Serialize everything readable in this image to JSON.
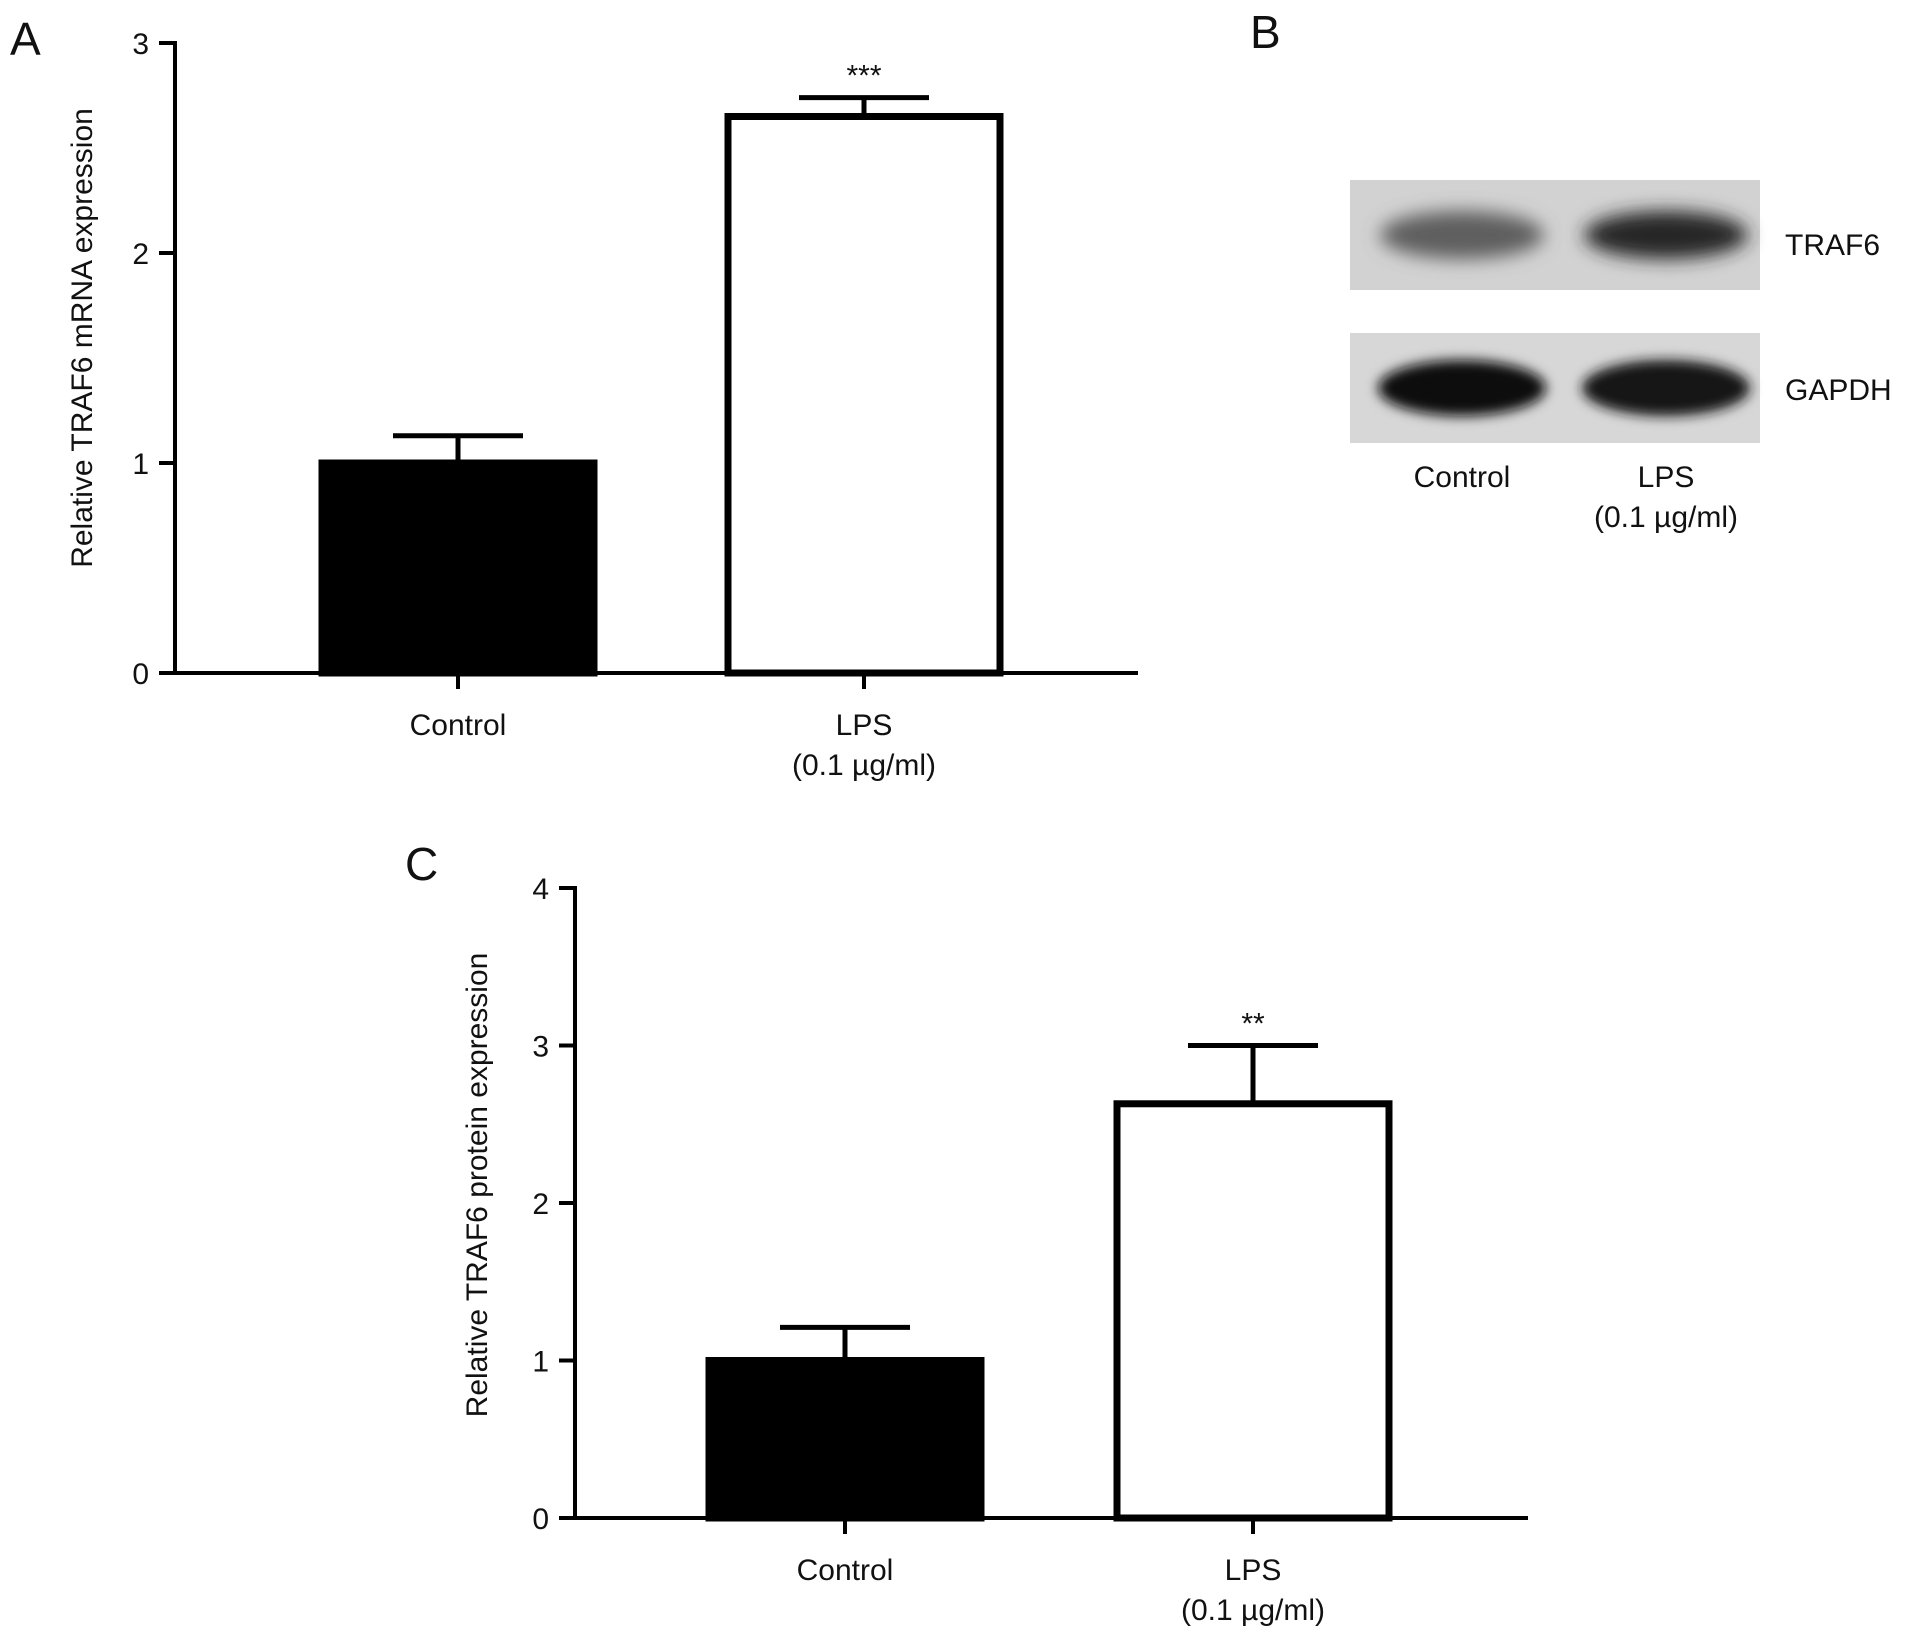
{
  "panels": {
    "A": "A",
    "B": "B",
    "C": "C"
  },
  "chart_data": [
    {
      "panel": "A",
      "type": "bar",
      "ylabel": "Relative TRAF6 mRNA expression",
      "xlabel": "",
      "ylim": [
        0,
        3
      ],
      "yticks": [
        0,
        1,
        2,
        3
      ],
      "categories": [
        [
          "Control"
        ],
        [
          "LPS",
          "(0.1 µg/ml)"
        ]
      ],
      "values": [
        1.0,
        2.65
      ],
      "errors": [
        0.13,
        0.09
      ],
      "significance": [
        "",
        "***"
      ],
      "fills": [
        "#000000",
        "#ffffff"
      ]
    },
    {
      "panel": "C",
      "type": "bar",
      "ylabel": "Relative TRAF6 protein expression",
      "xlabel": "",
      "ylim": [
        0,
        4
      ],
      "yticks": [
        0,
        1,
        2,
        3,
        4
      ],
      "categories": [
        [
          "Control"
        ],
        [
          "LPS",
          "(0.1 µg/ml)"
        ]
      ],
      "values": [
        1.0,
        2.63
      ],
      "errors": [
        0.21,
        0.37
      ],
      "significance": [
        "",
        "**"
      ],
      "fills": [
        "#000000",
        "#ffffff"
      ]
    }
  ],
  "blot": {
    "rows": [
      {
        "label": "TRAF6",
        "intensities": [
          0.55,
          0.85
        ]
      },
      {
        "label": "GAPDH",
        "intensities": [
          1.0,
          0.95
        ]
      }
    ],
    "lanes": [
      [
        "Control"
      ],
      [
        "LPS",
        "(0.1 µg/ml)"
      ]
    ]
  }
}
